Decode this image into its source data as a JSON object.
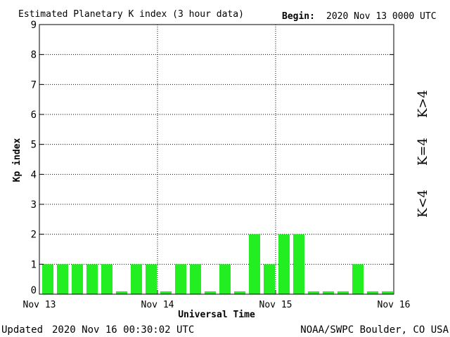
{
  "header": {
    "title": "Estimated Planetary K index (3 hour data)",
    "begin_label": "Begin:",
    "begin_value": "2020 Nov 13 0000 UTC"
  },
  "footer": {
    "updated_label": "Updated",
    "updated_value": "2020 Nov 16 00:30:02 UTC",
    "source": "NOAA/SWPC Boulder, CO USA"
  },
  "legend": {
    "low": {
      "label": "K<4",
      "color": "#22ee22"
    },
    "mid": {
      "label": "K=4",
      "color": "#ffcc00"
    },
    "high": {
      "label": "K>4",
      "color": "#ee2200"
    }
  },
  "chart_data": {
    "type": "bar",
    "title": "Estimated Planetary K index (3 hour data)",
    "xlabel": "Universal Time",
    "ylabel": "Kp index",
    "ylim": [
      0,
      9
    ],
    "yticks": [
      0,
      1,
      2,
      3,
      4,
      5,
      6,
      7,
      8,
      9
    ],
    "xticks": [
      "Nov 13",
      "Nov 14",
      "Nov 15",
      "Nov 16"
    ],
    "grid": true,
    "bar_color": "#22ee22",
    "series": [
      {
        "values": [
          1,
          1,
          1,
          1,
          1,
          0,
          1,
          1,
          0,
          1,
          1,
          0,
          1,
          0,
          2,
          1,
          2,
          2,
          0,
          0,
          0,
          1,
          0,
          0
        ]
      }
    ]
  }
}
